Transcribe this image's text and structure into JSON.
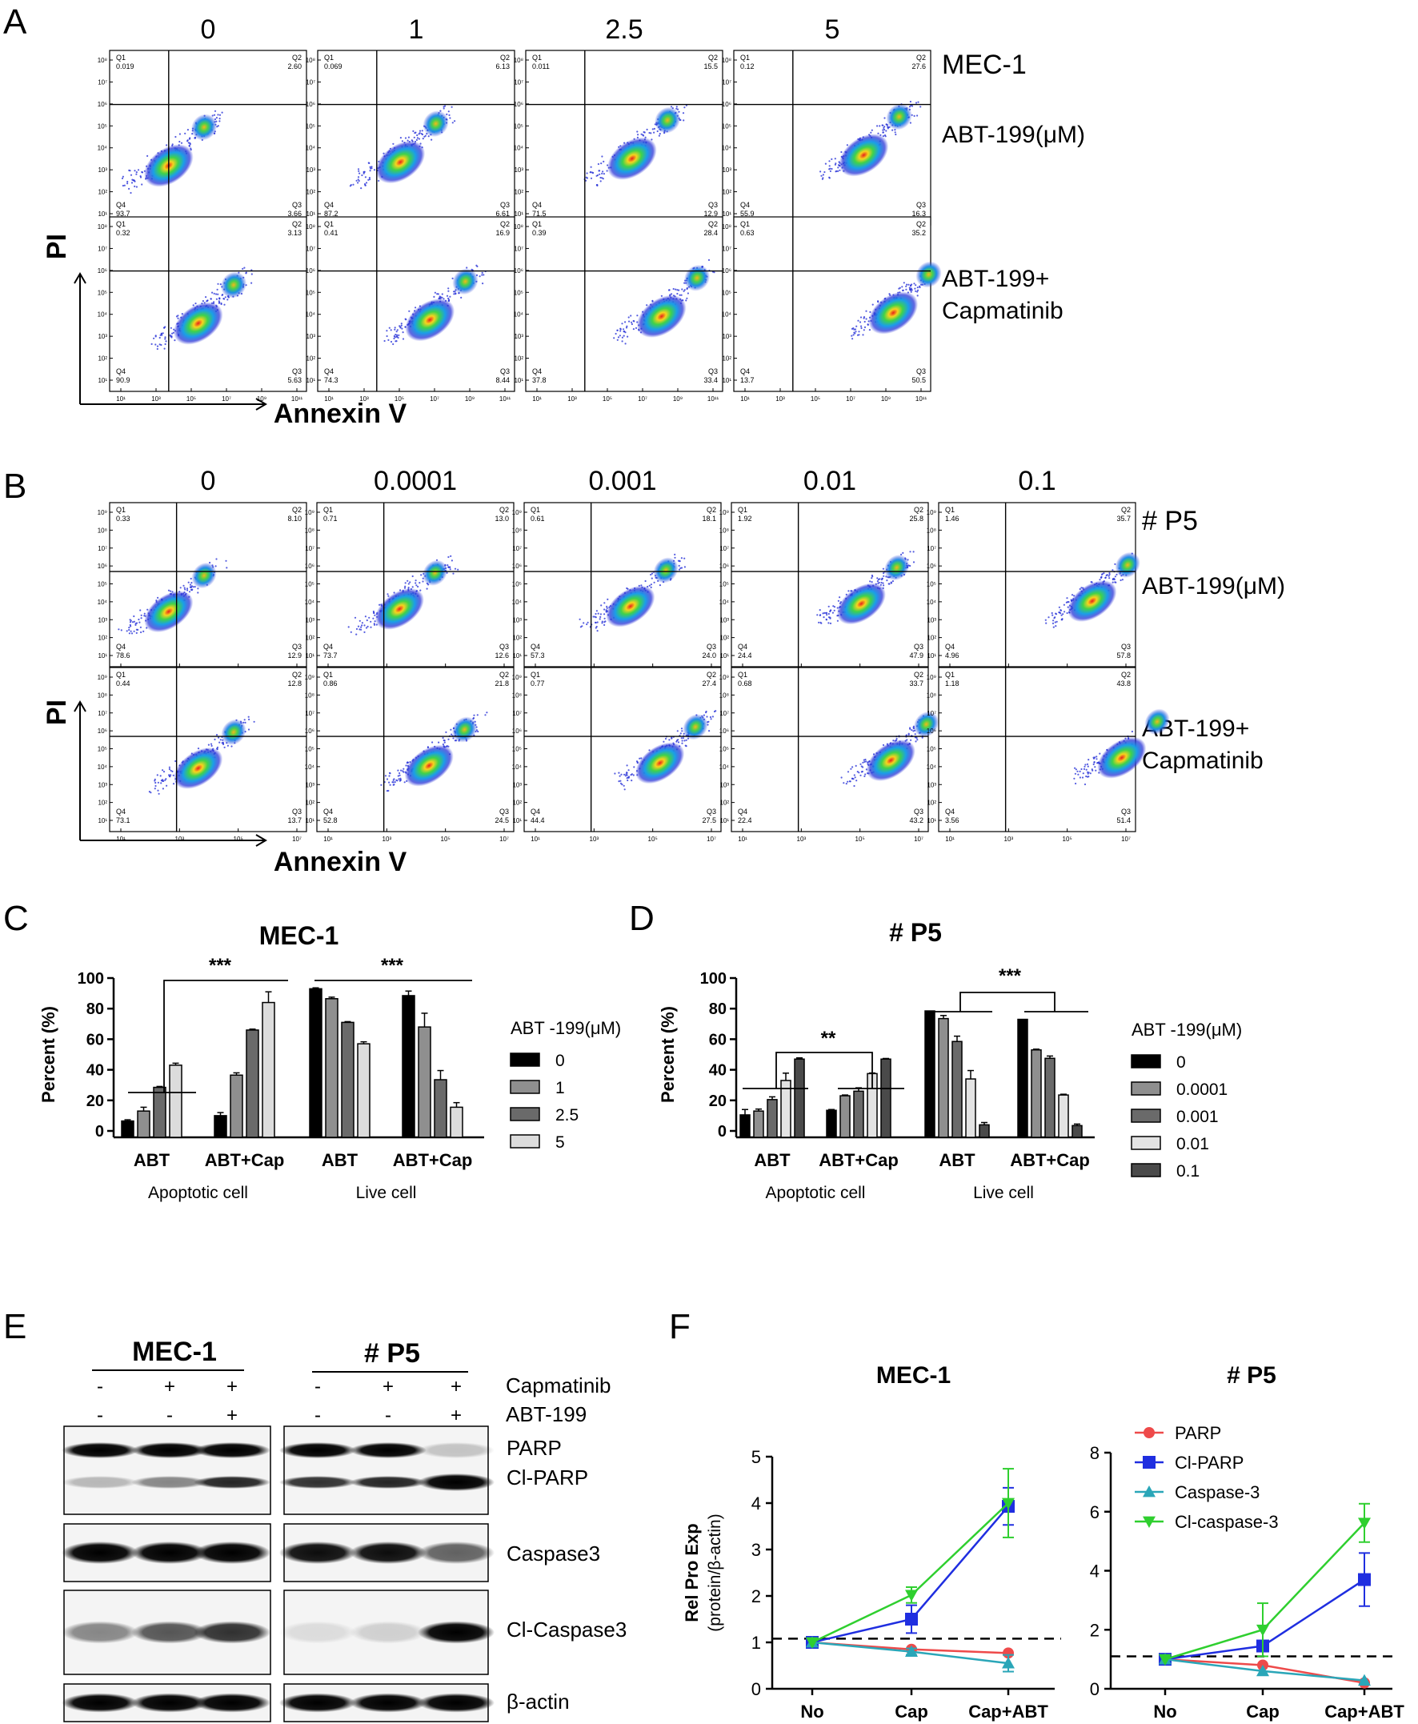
{
  "figure": {
    "panel_letters": [
      "A",
      "B",
      "C",
      "D",
      "E",
      "F"
    ],
    "panelA": {
      "cell_line": "MEC-1",
      "concentrations": [
        "0",
        "1",
        "2.5",
        "5"
      ],
      "row_labels": [
        [
          "ABT-199(μM)"
        ],
        [
          "ABT-199+",
          "Capmatinib"
        ]
      ],
      "y_axis": "PI",
      "x_axis": "Annexin V",
      "quadrants": [
        [
          [
            "0.019",
            "2.60",
            "3.66",
            "93.7"
          ],
          [
            "0.069",
            "6.13",
            "6.61",
            "87.2"
          ],
          [
            "0.011",
            "15.5",
            "12.9",
            "71.5"
          ],
          [
            "0.12",
            "27.6",
            "16.3",
            "55.9"
          ]
        ],
        [
          [
            "0.32",
            "3.13",
            "5.63",
            "90.9"
          ],
          [
            "0.41",
            "16.9",
            "8.44",
            "74.3"
          ],
          [
            "0.39",
            "28.4",
            "33.4",
            "37.8"
          ],
          [
            "0.63",
            "35.2",
            "50.5",
            "13.7"
          ]
        ]
      ],
      "y_ticks": [
        "10⁸",
        "10⁷",
        "10⁶",
        "10⁵",
        "10⁴",
        "10³",
        "10²",
        "10¹"
      ],
      "x_ticks": [
        "10¹",
        "10³",
        "10⁵",
        "10⁷",
        "10⁹",
        "10¹¹"
      ]
    },
    "panelB": {
      "cell_line": "# P5",
      "concentrations": [
        "0",
        "0.0001",
        "0.001",
        "0.01",
        "0.1"
      ],
      "row_labels": [
        [
          "ABT-199(μM)"
        ],
        [
          "ABT-199+",
          "Capmatinib"
        ]
      ],
      "y_axis": "PI",
      "x_axis": "Annexin V",
      "quadrants": [
        [
          [
            "0.33",
            "8.10",
            "12.9",
            "78.6"
          ],
          [
            "0.71",
            "13.0",
            "12.6",
            "73.7"
          ],
          [
            "0.61",
            "18.1",
            "24.0",
            "57.3"
          ],
          [
            "1.92",
            "25.8",
            "47.9",
            "24.4"
          ],
          [
            "1.46",
            "35.7",
            "57.8",
            "4.96"
          ]
        ],
        [
          [
            "0.44",
            "12.8",
            "13.7",
            "73.1"
          ],
          [
            "0.86",
            "21.8",
            "24.5",
            "52.8"
          ],
          [
            "0.77",
            "27.4",
            "27.5",
            "44.4"
          ],
          [
            "0.68",
            "33.7",
            "43.2",
            "22.4"
          ],
          [
            "1.18",
            "43.8",
            "51.4",
            "3.56"
          ]
        ]
      ],
      "y_ticks": [
        "10⁹",
        "10⁸",
        "10⁷",
        "10⁶",
        "10⁵",
        "10⁴",
        "10³",
        "10²",
        "10¹"
      ],
      "x_ticks": [
        "10¹",
        "10³",
        "10⁵",
        "10⁷"
      ]
    },
    "quadrant_names": [
      "Q1",
      "Q2",
      "Q3",
      "Q4"
    ],
    "panelE": {
      "cell_lines": [
        "MEC-1",
        "# P5"
      ],
      "treatment_rows": [
        {
          "name": "Capmatinib",
          "signs": [
            "-",
            "+",
            "+"
          ]
        },
        {
          "name": "ABT-199",
          "signs": [
            "-",
            "-",
            "+"
          ]
        }
      ],
      "blot_labels": [
        "PARP",
        "Cl-PARP",
        "Caspase3",
        "Cl-Caspase3",
        "β-actin"
      ]
    }
  },
  "chart_data": [
    {
      "type": "bar",
      "panel": "C",
      "title": "MEC-1",
      "ylabel": "Percent (%)",
      "ylim": [
        0,
        100
      ],
      "yticks": [
        0,
        20,
        40,
        60,
        80,
        100
      ],
      "groups": [
        "ABT",
        "ABT+Cap",
        "ABT",
        "ABT+Cap"
      ],
      "group_categories": [
        "Apoptotic cell",
        "Live cell"
      ],
      "legend_title": "ABT -199(μM)",
      "series": [
        {
          "name": "0",
          "values": [
            6.5,
            10,
            93,
            88.5
          ],
          "errors": [
            0.8,
            2,
            0.6,
            3
          ]
        },
        {
          "name": "1",
          "values": [
            13,
            36.5,
            86.5,
            68
          ],
          "errors": [
            2.5,
            1.5,
            1,
            9
          ]
        },
        {
          "name": "2.5",
          "values": [
            28.5,
            66,
            71,
            33.5
          ],
          "errors": [
            0.6,
            0.6,
            0.5,
            6
          ]
        },
        {
          "name": "5",
          "values": [
            43,
            84,
            57,
            15.5
          ],
          "errors": [
            1.3,
            7,
            1.3,
            3
          ]
        }
      ],
      "significance": [
        "***",
        "***"
      ]
    },
    {
      "type": "bar",
      "panel": "D",
      "title": "# P5",
      "ylabel": "Percent (%)",
      "ylim": [
        0,
        100
      ],
      "yticks": [
        0,
        20,
        40,
        60,
        80,
        100
      ],
      "groups": [
        "ABT",
        "ABT+Cap",
        "ABT",
        "ABT+Cap"
      ],
      "group_categories": [
        "Apoptotic cell",
        "Live cell"
      ],
      "legend_title": "ABT -199(μM)",
      "series": [
        {
          "name": "0",
          "values": [
            10.5,
            13.5,
            78.5,
            73
          ],
          "errors": [
            3.5,
            0.5,
            0,
            0
          ]
        },
        {
          "name": "0.0001",
          "values": [
            13,
            23,
            73.5,
            53
          ],
          "errors": [
            1.3,
            0.5,
            2,
            0.5
          ]
        },
        {
          "name": "0.001",
          "values": [
            20.5,
            26,
            58.5,
            47.5
          ],
          "errors": [
            1.8,
            2.2,
            3.5,
            1.5
          ]
        },
        {
          "name": "0.01",
          "values": [
            33,
            37.5,
            34,
            23.5
          ],
          "errors": [
            4.8,
            0.4,
            5.5,
            0.5
          ]
        },
        {
          "name": "0.1",
          "values": [
            47,
            47,
            4,
            3.5
          ],
          "errors": [
            0.8,
            0.4,
            1.5,
            1
          ]
        }
      ],
      "significance": [
        "**",
        "***"
      ]
    },
    {
      "type": "line",
      "panel": "F",
      "title": "MEC-1",
      "ylabel": [
        "Rel Pro Exp",
        "(protein/β-actin)"
      ],
      "categories": [
        "No",
        "Cap",
        "Cap+ABT"
      ],
      "ylim": [
        0,
        5
      ],
      "yticks": [
        0,
        1,
        2,
        3,
        4,
        5
      ],
      "reference_line": 1.08,
      "series": [
        {
          "name": "PARP",
          "color": "#ee4a4a",
          "marker": "circle",
          "values": [
            1.0,
            0.85,
            0.77
          ],
          "errors": [
            0,
            0,
            0
          ]
        },
        {
          "name": "Cl-PARP",
          "color": "#1f2ee0",
          "marker": "square",
          "values": [
            1.0,
            1.5,
            3.93
          ],
          "errors": [
            0,
            0.3,
            0.4
          ]
        },
        {
          "name": "Caspase-3",
          "color": "#2aa6b8",
          "marker": "triangle-up",
          "values": [
            1.0,
            0.8,
            0.55
          ],
          "errors": [
            0,
            0.07,
            0.18
          ]
        },
        {
          "name": "Cl-caspase-3",
          "color": "#2fcf2f",
          "marker": "triangle-down",
          "values": [
            1.0,
            2.02,
            4.0
          ],
          "errors": [
            0,
            0.17,
            0.74
          ]
        }
      ]
    },
    {
      "type": "line",
      "panel": "F",
      "title": "# P5",
      "categories": [
        "No",
        "Cap",
        "Cap+ABT"
      ],
      "ylim": [
        0,
        8
      ],
      "yticks": [
        0,
        2,
        4,
        6,
        8
      ],
      "reference_line": 1.1,
      "legend": [
        "PARP",
        "Cl-PARP",
        "Caspase-3",
        "Cl-caspase-3"
      ],
      "series": [
        {
          "name": "PARP",
          "color": "#ee4a4a",
          "marker": "circle",
          "values": [
            1.0,
            0.8,
            0.2
          ],
          "errors": [
            0,
            0,
            0
          ]
        },
        {
          "name": "Cl-PARP",
          "color": "#1f2ee0",
          "marker": "square",
          "values": [
            1.0,
            1.45,
            3.7
          ],
          "errors": [
            0,
            0,
            0.9
          ]
        },
        {
          "name": "Caspase-3",
          "color": "#2aa6b8",
          "marker": "triangle-up",
          "values": [
            1.0,
            0.6,
            0.28
          ],
          "errors": [
            0,
            0,
            0
          ]
        },
        {
          "name": "Cl-caspase-3",
          "color": "#2fcf2f",
          "marker": "triangle-down",
          "values": [
            1.0,
            2.0,
            5.62
          ],
          "errors": [
            0,
            0.9,
            0.65
          ]
        }
      ]
    }
  ]
}
